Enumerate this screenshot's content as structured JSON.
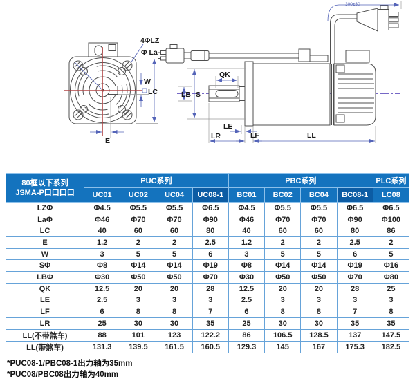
{
  "diagram": {
    "labels": {
      "holes": "4ΦLZ",
      "la": "Φ La",
      "w": "W",
      "lc": "LC",
      "e": "E",
      "qk": "QK",
      "s": "S",
      "lb": "LB",
      "le": "LE",
      "lr": "LR",
      "lf": "LF",
      "ll": "LL",
      "cable_length": "300±30"
    }
  },
  "table": {
    "corner_title_line1": "80框以下系列",
    "corner_title_line2": "JSMA-P口口口口",
    "groups": [
      {
        "label": "PUC系列",
        "span": 4
      },
      {
        "label": "PBC系列",
        "span": 4
      },
      {
        "label": "PLC系列",
        "span": 1
      }
    ],
    "columns": [
      "UC01",
      "UC02",
      "UC04",
      "UC08-1",
      "BC01",
      "BC02",
      "BC04",
      "BC08-1",
      "LC08"
    ],
    "highlight_columns": [
      "UC08-1",
      "BC08-1"
    ],
    "rows": [
      {
        "label": "LZΦ",
        "values": [
          "Φ4.5",
          "Φ5.5",
          "Φ5.5",
          "Φ6.5",
          "Φ4.5",
          "Φ5.5",
          "Φ5.5",
          "Φ6.5",
          "Φ6.5"
        ]
      },
      {
        "label": "LaΦ",
        "values": [
          "Φ46",
          "Φ70",
          "Φ70",
          "Φ90",
          "Φ46",
          "Φ70",
          "Φ70",
          "Φ90",
          "Φ100"
        ]
      },
      {
        "label": "LC",
        "values": [
          "40",
          "60",
          "60",
          "80",
          "40",
          "60",
          "60",
          "80",
          "86"
        ]
      },
      {
        "label": "E",
        "values": [
          "1.2",
          "2",
          "2",
          "2.5",
          "1.2",
          "2",
          "2",
          "2.5",
          "2"
        ]
      },
      {
        "label": "W",
        "values": [
          "3",
          "5",
          "5",
          "6",
          "3",
          "5",
          "5",
          "6",
          "5"
        ]
      },
      {
        "label": "SΦ",
        "values": [
          "Φ8",
          "Φ14",
          "Φ14",
          "Φ19",
          "Φ8",
          "Φ14",
          "Φ14",
          "Φ19",
          "Φ16"
        ]
      },
      {
        "label": "LBΦ",
        "values": [
          "Φ30",
          "Φ50",
          "Φ50",
          "Φ70",
          "Φ30",
          "Φ50",
          "Φ50",
          "Φ70",
          "Φ80"
        ]
      },
      {
        "label": "QK",
        "values": [
          "12.5",
          "20",
          "20",
          "28",
          "12.5",
          "20",
          "20",
          "28",
          "25"
        ]
      },
      {
        "label": "LE",
        "values": [
          "2.5",
          "3",
          "3",
          "3",
          "2.5",
          "3",
          "3",
          "3",
          "3"
        ]
      },
      {
        "label": "LF",
        "values": [
          "6",
          "8",
          "8",
          "7",
          "6",
          "8",
          "8",
          "7",
          "8"
        ]
      },
      {
        "label": "LR",
        "values": [
          "25",
          "30",
          "30",
          "35",
          "25",
          "30",
          "30",
          "35",
          "35"
        ]
      },
      {
        "label": "LL(不带煞车)",
        "values": [
          "88",
          "101",
          "123",
          "122.2",
          "86",
          "106.5",
          "128.5",
          "137",
          "147.5"
        ]
      },
      {
        "label": "LL(带煞车)",
        "values": [
          "131.3",
          "139.5",
          "161.5",
          "160.5",
          "129.3",
          "145",
          "167",
          "175.3",
          "182.5"
        ]
      }
    ]
  },
  "notes": [
    "*PUC08-1/PBC08-1出力轴为35mm",
    "*PUC08/PBC08出力轴为40mm"
  ],
  "colors": {
    "header_blue": "#1473be",
    "header_blue_dark": "#0c5ca4",
    "border_blue": "#66a3d9",
    "dimension_blue": "#5464b8",
    "centerline_red": "#b24444"
  }
}
